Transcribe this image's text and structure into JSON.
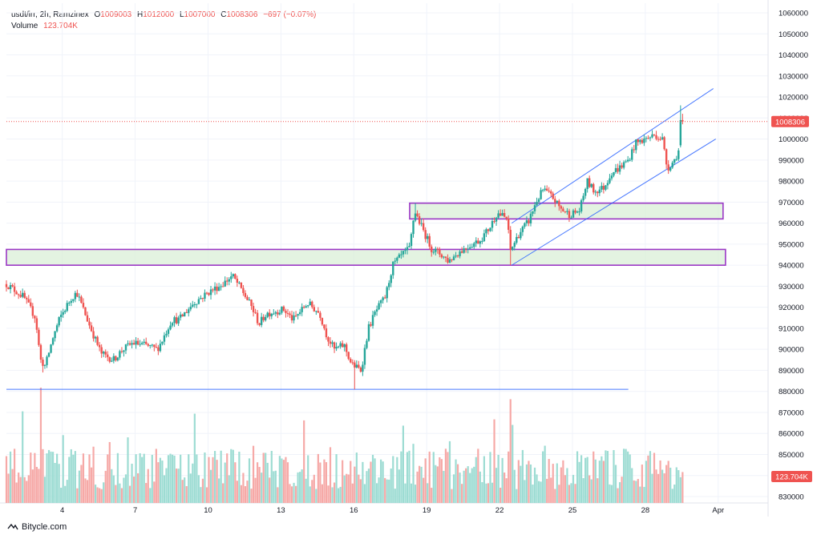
{
  "header": {
    "symbol": "usdt/irr, 2h, Ramzinex",
    "open_label": "O",
    "open": "1009003",
    "high_label": "H",
    "high": "1012000",
    "low_label": "L",
    "low": "1007000",
    "close_label": "C",
    "close": "1008306",
    "change": "−697 (−0.07%)",
    "volume_label": "Volume",
    "volume": "123.704K"
  },
  "brand": "Bitycle.com",
  "colors": {
    "up": "#26a69a",
    "down": "#ef5350",
    "upVol": "#9ddcd3",
    "downVol": "#f6a9a7",
    "zone": "#9b37c5",
    "zoneFill": "#d9efd7",
    "trend": "#2962ff",
    "price": "#ef5350"
  },
  "chart_data": {
    "type": "candlestick",
    "title": "usdt/irr, 2h, Ramzinex",
    "ylim": [
      826000,
      1064000
    ],
    "yticks": [
      1060000,
      1050000,
      1040000,
      1030000,
      1020000,
      1010000,
      1000000,
      990000,
      980000,
      970000,
      960000,
      950000,
      940000,
      930000,
      920000,
      910000,
      900000,
      890000,
      880000,
      870000,
      860000,
      850000,
      840000,
      830000
    ],
    "ytick_labels": [
      "1060000",
      "1050000",
      "1040000",
      "1030000",
      "1020000",
      "1010000",
      "1000000",
      "990000",
      "980000",
      "970000",
      "960000",
      "950000",
      "940000",
      "930000",
      "920000",
      "910000",
      "900000",
      "890000",
      "880000",
      "870000",
      "860000",
      "850000",
      "840000",
      "830000"
    ],
    "xlim": [
      1.7,
      31.4
    ],
    "xticks": [
      4,
      7,
      10,
      13,
      16,
      19,
      22,
      25,
      28,
      31
    ],
    "xtick_labels": [
      "4",
      "7",
      "10",
      "13",
      "16",
      "19",
      "22",
      "25",
      "28",
      "Apr"
    ],
    "price_line": {
      "value": 1008306,
      "label": "1008306"
    },
    "volume_label": "123.704K",
    "price_path": [
      [
        1.7,
        931000
      ],
      [
        2.4,
        925000
      ],
      [
        2.9,
        915000
      ],
      [
        3.1,
        895000
      ],
      [
        3.3,
        892000
      ],
      [
        3.6,
        905000
      ],
      [
        3.9,
        915000
      ],
      [
        4.4,
        925000
      ],
      [
        4.6,
        927000
      ],
      [
        5.1,
        912000
      ],
      [
        5.6,
        898000
      ],
      [
        6.1,
        895000
      ],
      [
        6.5,
        900000
      ],
      [
        6.9,
        903000
      ],
      [
        7.4,
        902000
      ],
      [
        7.9,
        900000
      ],
      [
        8.1,
        904000
      ],
      [
        8.5,
        914000
      ],
      [
        8.8,
        914000
      ],
      [
        9.4,
        922000
      ],
      [
        10.0,
        927000
      ],
      [
        10.6,
        931000
      ],
      [
        11.0,
        935000
      ],
      [
        11.4,
        928000
      ],
      [
        11.8,
        920000
      ],
      [
        12.1,
        912000
      ],
      [
        12.4,
        917000
      ],
      [
        13.1,
        919000
      ],
      [
        13.5,
        914000
      ],
      [
        14.1,
        922000
      ],
      [
        14.6,
        917000
      ],
      [
        14.9,
        906000
      ],
      [
        15.2,
        900000
      ],
      [
        15.6,
        902000
      ],
      [
        15.9,
        893000
      ],
      [
        16.3,
        890000
      ],
      [
        16.6,
        910000
      ],
      [
        16.9,
        918000
      ],
      [
        17.3,
        925000
      ],
      [
        17.6,
        940000
      ],
      [
        18.0,
        945000
      ],
      [
        18.3,
        948000
      ],
      [
        18.5,
        966000
      ],
      [
        18.8,
        958000
      ],
      [
        19.2,
        948000
      ],
      [
        19.6,
        945000
      ],
      [
        19.9,
        942000
      ],
      [
        20.3,
        946000
      ],
      [
        20.7,
        949000
      ],
      [
        21.2,
        952000
      ],
      [
        21.6,
        958000
      ],
      [
        21.9,
        965000
      ],
      [
        22.3,
        962000
      ],
      [
        22.45,
        947000
      ],
      [
        22.8,
        955000
      ],
      [
        23.2,
        961000
      ],
      [
        23.5,
        970000
      ],
      [
        23.8,
        976000
      ],
      [
        24.2,
        972000
      ],
      [
        24.5,
        967000
      ],
      [
        24.9,
        964000
      ],
      [
        25.3,
        966000
      ],
      [
        25.6,
        980000
      ],
      [
        25.9,
        975000
      ],
      [
        26.3,
        977000
      ],
      [
        26.6,
        984000
      ],
      [
        26.9,
        986000
      ],
      [
        27.3,
        990000
      ],
      [
        27.6,
        998000
      ],
      [
        28.0,
        1000000
      ],
      [
        28.4,
        1002000
      ],
      [
        28.7,
        1000000
      ],
      [
        28.9,
        986000
      ],
      [
        29.2,
        990000
      ],
      [
        29.5,
        998000
      ],
      [
        29.6,
        1008306
      ]
    ],
    "zones": [
      {
        "name": "upper-resistance-zone",
        "x_start": 18.3,
        "x_end": 31.2,
        "y_low": 962000,
        "y_high": 969500
      },
      {
        "name": "lower-support-zone",
        "x_start": 1.7,
        "x_end": 31.3,
        "y_low": 940000,
        "y_high": 947500
      }
    ],
    "trendlines": [
      {
        "name": "channel-upper-line",
        "points": [
          [
            22.5,
            960000
          ],
          [
            30.8,
            1024000
          ]
        ]
      },
      {
        "name": "channel-lower-line",
        "points": [
          [
            22.5,
            940000
          ],
          [
            30.9,
            1000000
          ]
        ]
      },
      {
        "name": "horizontal-support-line",
        "points": [
          [
            1.7,
            881000
          ],
          [
            27.3,
            881000
          ]
        ]
      }
    ]
  }
}
